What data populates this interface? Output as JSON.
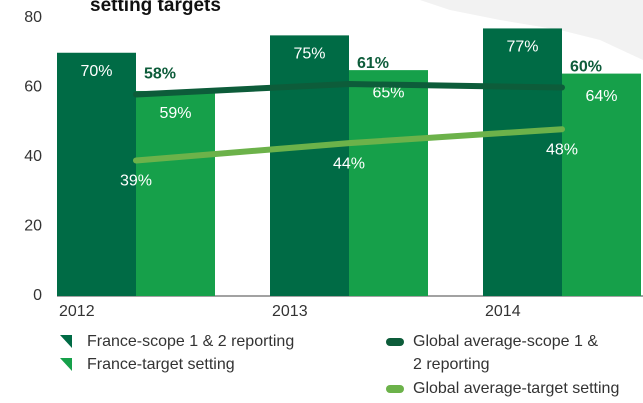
{
  "chart_data": {
    "type": "bar",
    "title": "setting targets",
    "categories": [
      "2012",
      "2013",
      "2014"
    ],
    "ylim": [
      0,
      80
    ],
    "yticks": [
      0,
      20,
      40,
      60,
      80
    ],
    "series": [
      {
        "name": "France-scope 1 & 2 reporting",
        "type": "bar",
        "color": "#006b45",
        "values": [
          70,
          75,
          77
        ],
        "value_labels": [
          "70%",
          "75%",
          "77%"
        ]
      },
      {
        "name": "France-target setting",
        "type": "bar",
        "color": "#16a04a",
        "values": [
          59,
          65,
          64
        ],
        "value_labels": [
          "59%",
          "65%",
          "64%"
        ]
      },
      {
        "name": "Global average-scope 1 & 2 reporting",
        "type": "line",
        "color": "#0d5c3a",
        "values": [
          58,
          61,
          60
        ],
        "value_labels": [
          "58%",
          "61%",
          "60%"
        ]
      },
      {
        "name": "Global average-target setting",
        "type": "line",
        "color": "#6cb24a",
        "values": [
          39,
          44,
          48
        ],
        "value_labels": [
          "39%",
          "44%",
          "48%"
        ]
      }
    ]
  }
}
